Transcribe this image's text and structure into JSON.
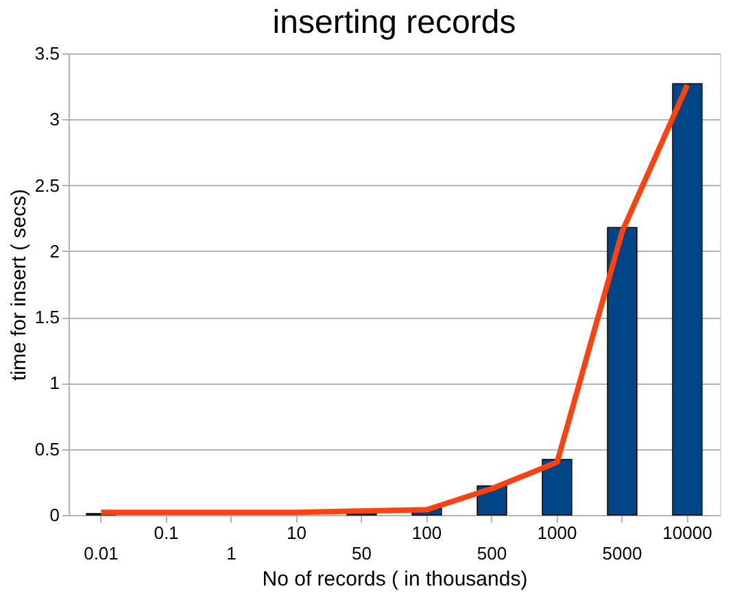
{
  "chart_data": {
    "type": "bar",
    "title": "inserting records",
    "xlabel": "No of records  ( in thousands)",
    "ylabel": "time for insert ( secs)",
    "categories": [
      "0.01",
      "0.1",
      "1",
      "10",
      "50",
      "100",
      "500",
      "1000",
      "5000",
      "10000"
    ],
    "series": [
      {
        "color": "#004586",
        "values": [
          0.01,
          null,
          null,
          null,
          0.01,
          0.05,
          0.22,
          0.42,
          2.18,
          3.27
        ]
      },
      {
        "type": "line",
        "color": "#ff420e",
        "values": [
          0.02,
          0.02,
          0.02,
          0.02,
          0.03,
          0.04,
          0.2,
          0.4,
          2.15,
          3.26
        ]
      }
    ],
    "ylim": [
      0,
      3.5
    ],
    "yticks": [
      0,
      0.5,
      1,
      1.5,
      2,
      2.5,
      3,
      3.5
    ],
    "grid": "y"
  }
}
